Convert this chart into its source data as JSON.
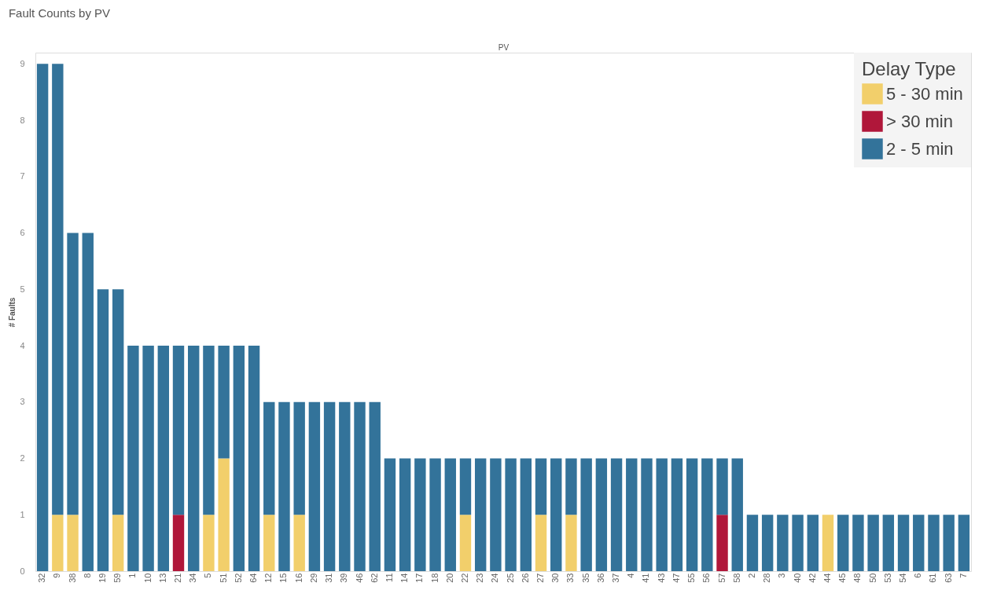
{
  "chart_data": {
    "type": "bar",
    "title": "Fault Counts by PV",
    "xlabel": "PV",
    "ylabel": "# Faults",
    "legend_title": "Delay Type",
    "categories": [
      "32",
      "9",
      "38",
      "8",
      "19",
      "59",
      "1",
      "10",
      "13",
      "21",
      "34",
      "5",
      "51",
      "52",
      "64",
      "12",
      "15",
      "16",
      "29",
      "31",
      "39",
      "46",
      "62",
      "11",
      "14",
      "17",
      "18",
      "20",
      "22",
      "23",
      "24",
      "25",
      "26",
      "27",
      "30",
      "33",
      "35",
      "36",
      "37",
      "4",
      "41",
      "43",
      "47",
      "55",
      "56",
      "57",
      "58",
      "2",
      "28",
      "3",
      "40",
      "42",
      "44",
      "45",
      "48",
      "50",
      "53",
      "54",
      "6",
      "61",
      "63",
      "7"
    ],
    "stacked": true,
    "series": [
      {
        "name": "5 - 30 min",
        "color": "#f2cf6b",
        "values": [
          0,
          1,
          1,
          0,
          0,
          1,
          0,
          0,
          0,
          0,
          0,
          1,
          2,
          0,
          0,
          1,
          0,
          1,
          0,
          0,
          0,
          0,
          0,
          0,
          0,
          0,
          0,
          0,
          1,
          0,
          0,
          0,
          0,
          1,
          0,
          1,
          0,
          0,
          0,
          0,
          0,
          0,
          0,
          0,
          0,
          0,
          0,
          0,
          0,
          0,
          0,
          0,
          1,
          0,
          0,
          0,
          0,
          0,
          0,
          0,
          0,
          0
        ]
      },
      {
        "name": "> 30 min",
        "color": "#b0173a",
        "values": [
          0,
          0,
          0,
          0,
          0,
          0,
          0,
          0,
          0,
          1,
          0,
          0,
          0,
          0,
          0,
          0,
          0,
          0,
          0,
          0,
          0,
          0,
          0,
          0,
          0,
          0,
          0,
          0,
          0,
          0,
          0,
          0,
          0,
          0,
          0,
          0,
          0,
          0,
          0,
          0,
          0,
          0,
          0,
          0,
          0,
          1,
          0,
          0,
          0,
          0,
          0,
          0,
          0,
          0,
          0,
          0,
          0,
          0,
          0,
          0,
          0,
          0
        ]
      },
      {
        "name": "2 - 5 min",
        "color": "#33739a",
        "values": [
          9,
          8,
          5,
          6,
          5,
          4,
          4,
          4,
          4,
          3,
          4,
          3,
          2,
          4,
          4,
          2,
          3,
          2,
          3,
          3,
          3,
          3,
          3,
          2,
          2,
          2,
          2,
          2,
          1,
          2,
          2,
          2,
          2,
          1,
          2,
          1,
          2,
          2,
          2,
          2,
          2,
          2,
          2,
          2,
          2,
          1,
          2,
          1,
          1,
          1,
          1,
          1,
          0,
          1,
          1,
          1,
          1,
          1,
          1,
          1,
          1,
          1
        ]
      }
    ],
    "ylim": [
      0,
      9.2
    ],
    "yticks": [
      0,
      1,
      2,
      3,
      4,
      5,
      6,
      7,
      8,
      9
    ],
    "grid": false,
    "legend": "top right"
  }
}
